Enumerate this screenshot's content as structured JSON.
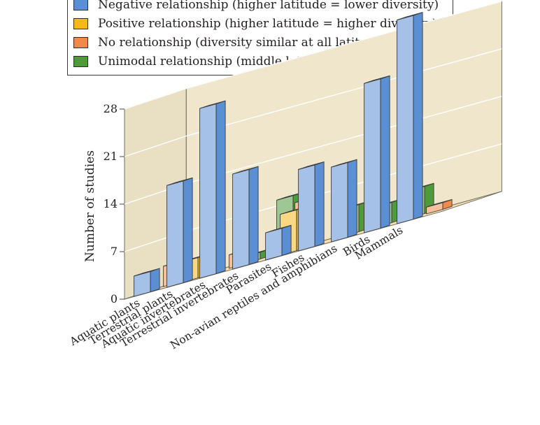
{
  "chart_data": {
    "type": "bar",
    "subtype": "3d-clustered",
    "ylabel": "Number of studies",
    "xlabel": "",
    "ylim": [
      0,
      28
    ],
    "yticks": [
      "0",
      "7",
      "14",
      "21",
      "28"
    ],
    "grid": true,
    "legend_position": "top",
    "categories": [
      "Aquatic plants",
      "Terrestrial plants",
      "Aquatic invertebrates",
      "Terrestrial invertebrates",
      "Parasites",
      "Fishes",
      "Non-avian reptiles and amphibians",
      "Birds",
      "Mammals"
    ],
    "series": [
      {
        "name": "Negative relationship (higher latitude = lower diversity)",
        "color": "#5b8fd3",
        "values": [
          3,
          15,
          25,
          14,
          4,
          12,
          11,
          22,
          30
        ]
      },
      {
        "name": "Positive relationship (higher latitude = higher diversity)",
        "color": "#f6b81b",
        "values": [
          0,
          3,
          0,
          0,
          6,
          0,
          0,
          0,
          0
        ]
      },
      {
        "name": "No relationship (diversity similar at all latitudes)",
        "color": "#f08a4b",
        "values": [
          3,
          1,
          2,
          0,
          7,
          0,
          0,
          0,
          1
        ]
      },
      {
        "name": "Unimodal relationship (middle latitudes = higher diversity)",
        "color": "#4f9a3a",
        "values": [
          0,
          0,
          1,
          8,
          0,
          4,
          3,
          4,
          0
        ]
      }
    ]
  }
}
